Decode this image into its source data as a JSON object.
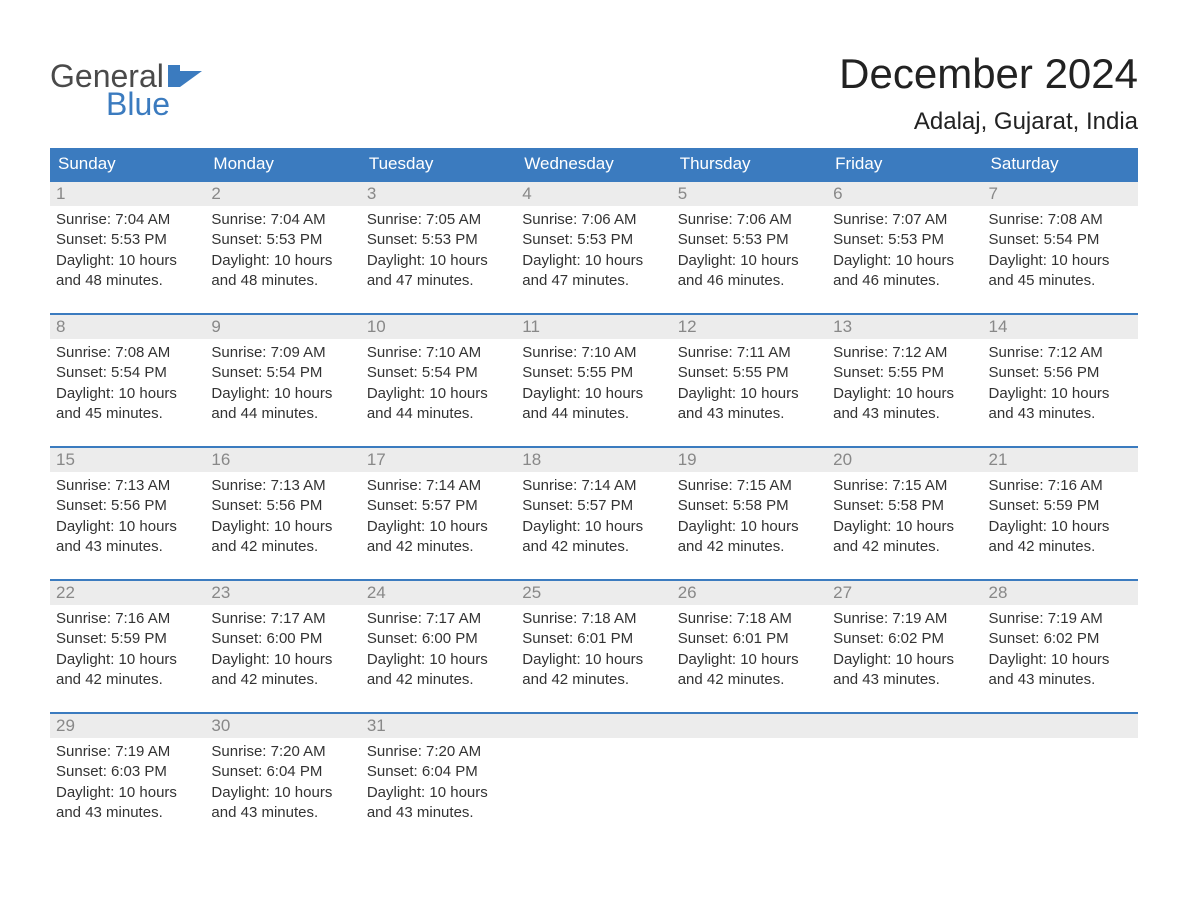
{
  "logo": {
    "text1": "General",
    "text2": "Blue",
    "shape_color": "#3b7bbf"
  },
  "title": "December 2024",
  "location": "Adalaj, Gujarat, India",
  "header_bg": "#3b7bbf",
  "daynum_bg": "#ececec",
  "dow": [
    "Sunday",
    "Monday",
    "Tuesday",
    "Wednesday",
    "Thursday",
    "Friday",
    "Saturday"
  ],
  "weeks": [
    [
      {
        "n": "1",
        "sr": "7:04 AM",
        "ss": "5:53 PM",
        "dh": "10",
        "dm": "48"
      },
      {
        "n": "2",
        "sr": "7:04 AM",
        "ss": "5:53 PM",
        "dh": "10",
        "dm": "48"
      },
      {
        "n": "3",
        "sr": "7:05 AM",
        "ss": "5:53 PM",
        "dh": "10",
        "dm": "47"
      },
      {
        "n": "4",
        "sr": "7:06 AM",
        "ss": "5:53 PM",
        "dh": "10",
        "dm": "47"
      },
      {
        "n": "5",
        "sr": "7:06 AM",
        "ss": "5:53 PM",
        "dh": "10",
        "dm": "46"
      },
      {
        "n": "6",
        "sr": "7:07 AM",
        "ss": "5:53 PM",
        "dh": "10",
        "dm": "46"
      },
      {
        "n": "7",
        "sr": "7:08 AM",
        "ss": "5:54 PM",
        "dh": "10",
        "dm": "45"
      }
    ],
    [
      {
        "n": "8",
        "sr": "7:08 AM",
        "ss": "5:54 PM",
        "dh": "10",
        "dm": "45"
      },
      {
        "n": "9",
        "sr": "7:09 AM",
        "ss": "5:54 PM",
        "dh": "10",
        "dm": "44"
      },
      {
        "n": "10",
        "sr": "7:10 AM",
        "ss": "5:54 PM",
        "dh": "10",
        "dm": "44"
      },
      {
        "n": "11",
        "sr": "7:10 AM",
        "ss": "5:55 PM",
        "dh": "10",
        "dm": "44"
      },
      {
        "n": "12",
        "sr": "7:11 AM",
        "ss": "5:55 PM",
        "dh": "10",
        "dm": "43"
      },
      {
        "n": "13",
        "sr": "7:12 AM",
        "ss": "5:55 PM",
        "dh": "10",
        "dm": "43"
      },
      {
        "n": "14",
        "sr": "7:12 AM",
        "ss": "5:56 PM",
        "dh": "10",
        "dm": "43"
      }
    ],
    [
      {
        "n": "15",
        "sr": "7:13 AM",
        "ss": "5:56 PM",
        "dh": "10",
        "dm": "43"
      },
      {
        "n": "16",
        "sr": "7:13 AM",
        "ss": "5:56 PM",
        "dh": "10",
        "dm": "42"
      },
      {
        "n": "17",
        "sr": "7:14 AM",
        "ss": "5:57 PM",
        "dh": "10",
        "dm": "42"
      },
      {
        "n": "18",
        "sr": "7:14 AM",
        "ss": "5:57 PM",
        "dh": "10",
        "dm": "42"
      },
      {
        "n": "19",
        "sr": "7:15 AM",
        "ss": "5:58 PM",
        "dh": "10",
        "dm": "42"
      },
      {
        "n": "20",
        "sr": "7:15 AM",
        "ss": "5:58 PM",
        "dh": "10",
        "dm": "42"
      },
      {
        "n": "21",
        "sr": "7:16 AM",
        "ss": "5:59 PM",
        "dh": "10",
        "dm": "42"
      }
    ],
    [
      {
        "n": "22",
        "sr": "7:16 AM",
        "ss": "5:59 PM",
        "dh": "10",
        "dm": "42"
      },
      {
        "n": "23",
        "sr": "7:17 AM",
        "ss": "6:00 PM",
        "dh": "10",
        "dm": "42"
      },
      {
        "n": "24",
        "sr": "7:17 AM",
        "ss": "6:00 PM",
        "dh": "10",
        "dm": "42"
      },
      {
        "n": "25",
        "sr": "7:18 AM",
        "ss": "6:01 PM",
        "dh": "10",
        "dm": "42"
      },
      {
        "n": "26",
        "sr": "7:18 AM",
        "ss": "6:01 PM",
        "dh": "10",
        "dm": "42"
      },
      {
        "n": "27",
        "sr": "7:19 AM",
        "ss": "6:02 PM",
        "dh": "10",
        "dm": "43"
      },
      {
        "n": "28",
        "sr": "7:19 AM",
        "ss": "6:02 PM",
        "dh": "10",
        "dm": "43"
      }
    ],
    [
      {
        "n": "29",
        "sr": "7:19 AM",
        "ss": "6:03 PM",
        "dh": "10",
        "dm": "43"
      },
      {
        "n": "30",
        "sr": "7:20 AM",
        "ss": "6:04 PM",
        "dh": "10",
        "dm": "43"
      },
      {
        "n": "31",
        "sr": "7:20 AM",
        "ss": "6:04 PM",
        "dh": "10",
        "dm": "43"
      },
      null,
      null,
      null,
      null
    ]
  ],
  "labels": {
    "sunrise": "Sunrise:",
    "sunset": "Sunset:",
    "daylight_prefix": "Daylight:",
    "hours_word": "hours",
    "and_word": "and",
    "minutes_word": "minutes."
  }
}
